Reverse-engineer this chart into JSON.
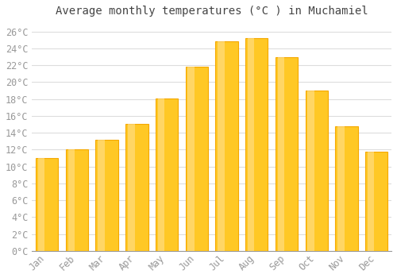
{
  "title": "Average monthly temperatures (°C ) in Muchamiel",
  "months": [
    "Jan",
    "Feb",
    "Mar",
    "Apr",
    "May",
    "Jun",
    "Jul",
    "Aug",
    "Sep",
    "Oct",
    "Nov",
    "Dec"
  ],
  "temperatures": [
    11.0,
    12.0,
    13.2,
    15.1,
    18.1,
    21.8,
    24.8,
    25.2,
    23.0,
    19.0,
    14.8,
    11.8
  ],
  "bar_color_main": "#FFC825",
  "bar_color_edge": "#F5A800",
  "bar_color_light": "#FFE090",
  "background_color": "#FFFFFF",
  "grid_color": "#DDDDDD",
  "text_color": "#999999",
  "title_color": "#444444",
  "ylim": [
    0,
    27
  ],
  "yticks": [
    0,
    2,
    4,
    6,
    8,
    10,
    12,
    14,
    16,
    18,
    20,
    22,
    24,
    26
  ],
  "title_fontsize": 10,
  "tick_fontsize": 8.5,
  "bar_width": 0.75
}
